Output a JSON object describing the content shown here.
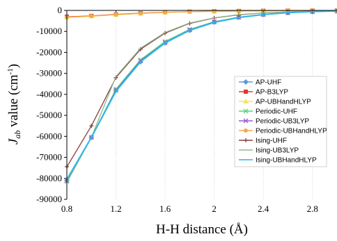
{
  "chart_data": {
    "type": "line",
    "xlabel": "H-H distance (Å)",
    "ylabel": {
      "prefix": "J",
      "sub": "ab",
      "rest": " value (cm",
      "sup": "-1",
      "close": ")"
    },
    "xlim": [
      0.8,
      3.0
    ],
    "ylim": [
      -90000,
      0
    ],
    "xticks": [
      "0.8",
      "1.2",
      "1.6",
      "2",
      "2.4",
      "2.8"
    ],
    "xtick_values": [
      0.8,
      1.2,
      1.6,
      2.0,
      2.4,
      2.8
    ],
    "yticks": [
      "0",
      "-10000",
      "-20000",
      "-30000",
      "-40000",
      "-50000",
      "-60000",
      "-70000",
      "-80000",
      "-90000"
    ],
    "ytick_values": [
      0,
      -10000,
      -20000,
      -30000,
      -40000,
      -50000,
      -60000,
      -70000,
      -80000,
      -90000
    ],
    "legend_position": "right",
    "x": [
      0.8,
      1.0,
      1.2,
      1.4,
      1.6,
      1.8,
      2.0,
      2.2,
      2.4,
      2.6,
      2.8,
      3.0
    ],
    "series": [
      {
        "name": "AP-UHF",
        "color": "#5b9bd5",
        "marker": "diamond",
        "values": [
          -81000,
          -60500,
          -38000,
          -24500,
          -15500,
          -9500,
          -5600,
          -3300,
          -2000,
          -1100,
          -600,
          -300
        ]
      },
      {
        "name": "AP-B3LYP",
        "color": "#e0382e",
        "marker": "square",
        "values": [
          -3000,
          -2600,
          -1900,
          -1300,
          -900,
          -600,
          -400,
          -250,
          -150,
          -100,
          -60,
          -30
        ]
      },
      {
        "name": "AP-UBHandHLYP",
        "color": "#f2e85c",
        "marker": "triangle",
        "values": [
          -3300,
          -2800,
          -2100,
          -1500,
          -1000,
          -650,
          -420,
          -270,
          -170,
          -100,
          -60,
          -30
        ]
      },
      {
        "name": "Periodic-UHF",
        "color": "#5ad17a",
        "marker": "x",
        "values": [
          -81500,
          -60500,
          -37500,
          -23500,
          -14800,
          -9000,
          -5400,
          -3200,
          -1900,
          -1100,
          -600,
          -300
        ]
      },
      {
        "name": "Periodic-UB3LYP",
        "color": "#9b59d0",
        "marker": "x",
        "values": [
          -81000,
          -60500,
          -38000,
          -24000,
          -15300,
          -9300,
          -5500,
          -3300,
          -2000,
          -1100,
          -600,
          -300
        ]
      },
      {
        "name": "Periodic-UBHandHLYP",
        "color": "#f5a94a",
        "marker": "circle",
        "values": [
          -3200,
          -2700,
          -2000,
          -1400,
          -950,
          -620,
          -400,
          -260,
          -160,
          -100,
          -60,
          -30
        ]
      },
      {
        "name": "Ising-UHF",
        "color": "#8b3a3a",
        "marker": "plus",
        "values": [
          -74500,
          -55000,
          -32000,
          -18500,
          -10800,
          -6200,
          -3600,
          -2100,
          -1200,
          -700,
          -400,
          -200
        ]
      },
      {
        "name": "Ising-UB3LYP",
        "color": "#8fb98f",
        "marker": "none",
        "values": [
          -82000,
          -60500,
          -31500,
          -18000,
          -10500,
          -6000,
          -3500,
          -2000,
          -1200,
          -700,
          -400,
          -200
        ]
      },
      {
        "name": "Ising-UBHandHLYP",
        "color": "#2ab7e8",
        "marker": "none",
        "values": [
          -80500,
          -60500,
          -38500,
          -24500,
          -15500,
          -9500,
          -5700,
          -3400,
          -2000,
          -1100,
          -600,
          -300
        ]
      }
    ]
  }
}
